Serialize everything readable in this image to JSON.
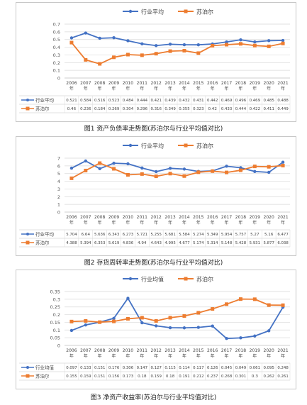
{
  "colors": {
    "industry": "#4472c4",
    "supor": "#ed7d31",
    "grid": "#d9d9d9",
    "axis": "#bfbfbf"
  },
  "captions": [
    "图1   资产负债率走势图(苏泊尔与行业平均值对比)",
    "图2   存货周转率走势图(苏泊尔与行业平均值对比)",
    "图3   净资产收益率(苏泊尔与行业平均值对比)"
  ],
  "chart_data": [
    {
      "type": "line",
      "categories": [
        "2006\n年",
        "2007\n年",
        "2008\n年",
        "2009\n年",
        "2010\n年",
        "2011\n年",
        "2012\n年",
        "2013\n年",
        "2014\n年",
        "2015\n年",
        "2016\n年",
        "2017\n年",
        "2018\n年",
        "2019\n年",
        "2020\n年",
        "2021\n年"
      ],
      "ylim": [
        0,
        0.7
      ],
      "yticks": [
        "0",
        "0.1",
        "0.2",
        "0.3",
        "0.4",
        "0.5",
        "0.6",
        "0.7"
      ],
      "legend": [
        "行业平均",
        "苏泊尔"
      ],
      "series": [
        {
          "name": "行业平均",
          "values": [
            0.521,
            0.584,
            0.516,
            0.523,
            0.484,
            0.444,
            0.421,
            0.439,
            0.432,
            0.431,
            0.442,
            0.469,
            0.496,
            0.469,
            0.485,
            0.488
          ],
          "labels": [
            "0.521",
            "0.584",
            "0.516",
            "0.523",
            "0.484",
            "0.444",
            "0.421",
            "0.439",
            "0.432",
            "0.431",
            "0.442",
            "0.469",
            "0.496",
            "0.469",
            "0.485",
            "0.488"
          ]
        },
        {
          "name": "苏泊尔",
          "values": [
            0.46,
            0.236,
            0.184,
            0.269,
            0.304,
            0.296,
            0.316,
            0.349,
            0.355,
            0.323,
            0.42,
            0.433,
            0.444,
            0.422,
            0.411,
            0.449
          ],
          "labels": [
            "0.46",
            "0.236",
            "0.184",
            "0.269",
            "0.304",
            "0.296",
            "0.316",
            "0.349",
            "0.355",
            "0.323",
            "0.42",
            "0.433",
            "0.444",
            "0.422",
            "0.411",
            "0.449"
          ]
        }
      ]
    },
    {
      "type": "line",
      "categories": [
        "2006\n年",
        "2007\n年",
        "2008\n年",
        "2009\n年",
        "2010\n年",
        "2011\n年",
        "2012\n年",
        "2013\n年",
        "2014\n年",
        "2015\n年",
        "2016\n年",
        "2017\n年",
        "2018\n年",
        "2019\n年",
        "2020\n年",
        "2021\n年"
      ],
      "ylim": [
        0,
        7
      ],
      "yticks": [
        "0",
        "1",
        "2",
        "3",
        "4",
        "5",
        "6",
        "7"
      ],
      "legend": [
        "行业平均",
        "苏泊尔"
      ],
      "series": [
        {
          "name": "行业平均",
          "values": [
            5.704,
            6.64,
            5.636,
            6.343,
            6.273,
            5.721,
            5.255,
            5.681,
            5.584,
            5.274,
            5.349,
            5.954,
            5.757,
            5.27,
            5.16,
            6.477
          ],
          "labels": [
            "5.704",
            "6.64",
            "5.636",
            "6.343",
            "6.273",
            "5.721",
            "5.255",
            "5.681",
            "5.584",
            "5.274",
            "5.349",
            "5.954",
            "5.757",
            "5.27",
            "5.16",
            "6.477"
          ]
        },
        {
          "name": "苏泊尔",
          "values": [
            4.388,
            5.394,
            6.353,
            5.619,
            4.836,
            4.94,
            4.643,
            4.995,
            4.677,
            5.174,
            5.314,
            5.148,
            5.428,
            5.931,
            5.877,
            6.038
          ],
          "labels": [
            "4.388",
            "5.394",
            "6.353",
            "5.619",
            "4.836",
            "4.94",
            "4.643",
            "4.995",
            "4.677",
            "5.174",
            "5.314",
            "5.148",
            "5.428",
            "5.931",
            "5.877",
            "6.038"
          ]
        }
      ]
    },
    {
      "type": "line",
      "categories": [
        "2006\n年",
        "2007\n年",
        "2008\n年",
        "2009\n年",
        "2010\n年",
        "2011\n年",
        "2012\n年",
        "2013\n年",
        "2014\n年",
        "2015\n年",
        "2016\n年",
        "2017\n年",
        "2018\n年",
        "2019\n年",
        "2020\n年",
        "2021\n年"
      ],
      "ylim": [
        0,
        0.35
      ],
      "yticks": [
        "0",
        "0.05",
        "0.1",
        "0.15",
        "0.2",
        "0.25",
        "0.3",
        "0.35"
      ],
      "legend": [
        "行业均值",
        "苏泊尔"
      ],
      "series": [
        {
          "name": "行业均值",
          "values": [
            0.097,
            0.133,
            0.151,
            0.176,
            0.306,
            0.147,
            0.127,
            0.115,
            0.114,
            0.117,
            0.126,
            0.045,
            0.049,
            0.061,
            0.095,
            0.248
          ],
          "labels": [
            "0.097",
            "0.133",
            "0.151",
            "0.176",
            "0.306",
            "0.147",
            "0.127",
            "0.115",
            "0.114",
            "0.117",
            "0.126",
            "0.045",
            "0.049",
            "0.061",
            "0.095",
            "0.248"
          ]
        },
        {
          "name": "苏泊尔",
          "values": [
            0.155,
            0.159,
            0.151,
            0.156,
            0.173,
            0.18,
            0.159,
            0.18,
            0.191,
            0.212,
            0.237,
            0.268,
            0.301,
            0.3,
            0.262,
            0.261
          ],
          "labels": [
            "0.155",
            "0.159",
            "0.151",
            "0.156",
            "0.173",
            "0.18",
            "0.159",
            "0.18",
            "0.191",
            "0.212",
            "0.237",
            "0.268",
            "0.301",
            "0.3",
            "0.262",
            "0.261"
          ]
        }
      ]
    }
  ]
}
